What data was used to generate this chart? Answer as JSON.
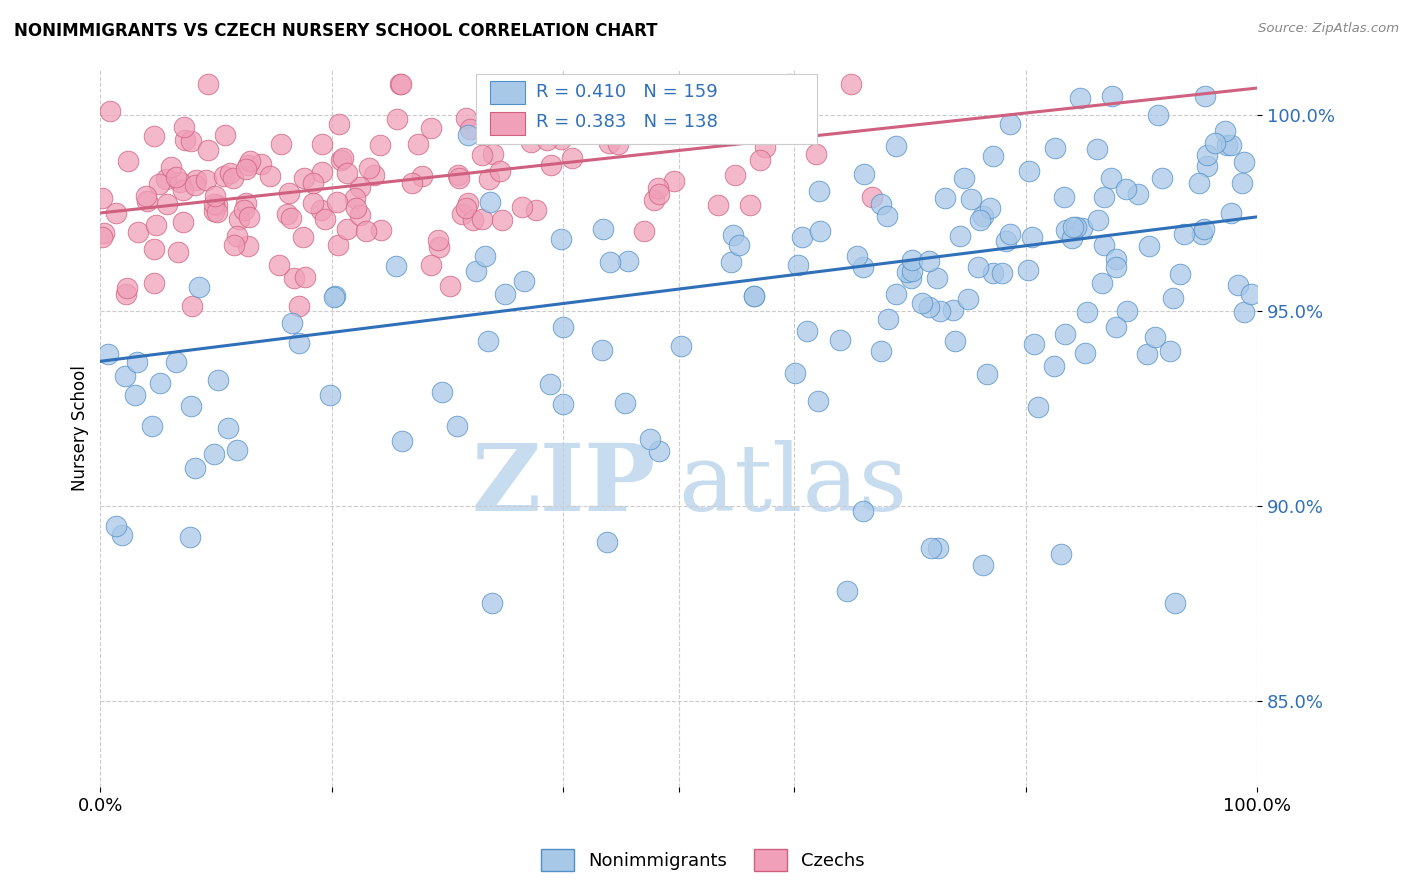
{
  "title": "NONIMMIGRANTS VS CZECH NURSERY SCHOOL CORRELATION CHART",
  "source": "Source: ZipAtlas.com",
  "ylabel": "Nursery School",
  "ytick_labels": [
    "85.0%",
    "90.0%",
    "95.0%",
    "100.0%"
  ],
  "ytick_values": [
    0.85,
    0.9,
    0.95,
    1.0
  ],
  "xlim": [
    0.0,
    1.0
  ],
  "ylim": [
    0.828,
    1.012
  ],
  "blue_fill": "#A8C8E8",
  "blue_edge": "#5090C8",
  "pink_fill": "#F0A0B8",
  "pink_edge": "#D06080",
  "blue_line_color": "#3070B8",
  "pink_line_color": "#D06080",
  "legend_R_blue": "R = 0.410",
  "legend_N_blue": "N = 159",
  "legend_R_pink": "R = 0.383",
  "legend_N_pink": "N = 138",
  "legend_label_blue": "Nonimmigrants",
  "legend_label_pink": "Czechs",
  "watermark_zip": "ZIP",
  "watermark_atlas": "atlas",
  "blue_trend_x0": 0.0,
  "blue_trend_x1": 1.0,
  "blue_trend_y0": 0.937,
  "blue_trend_y1": 0.974,
  "pink_trend_x0": 0.0,
  "pink_trend_x1": 1.0,
  "pink_trend_y0": 0.975,
  "pink_trend_y1": 1.007,
  "n_blue": 159,
  "n_pink": 138,
  "blue_seed": 42,
  "pink_seed": 77
}
